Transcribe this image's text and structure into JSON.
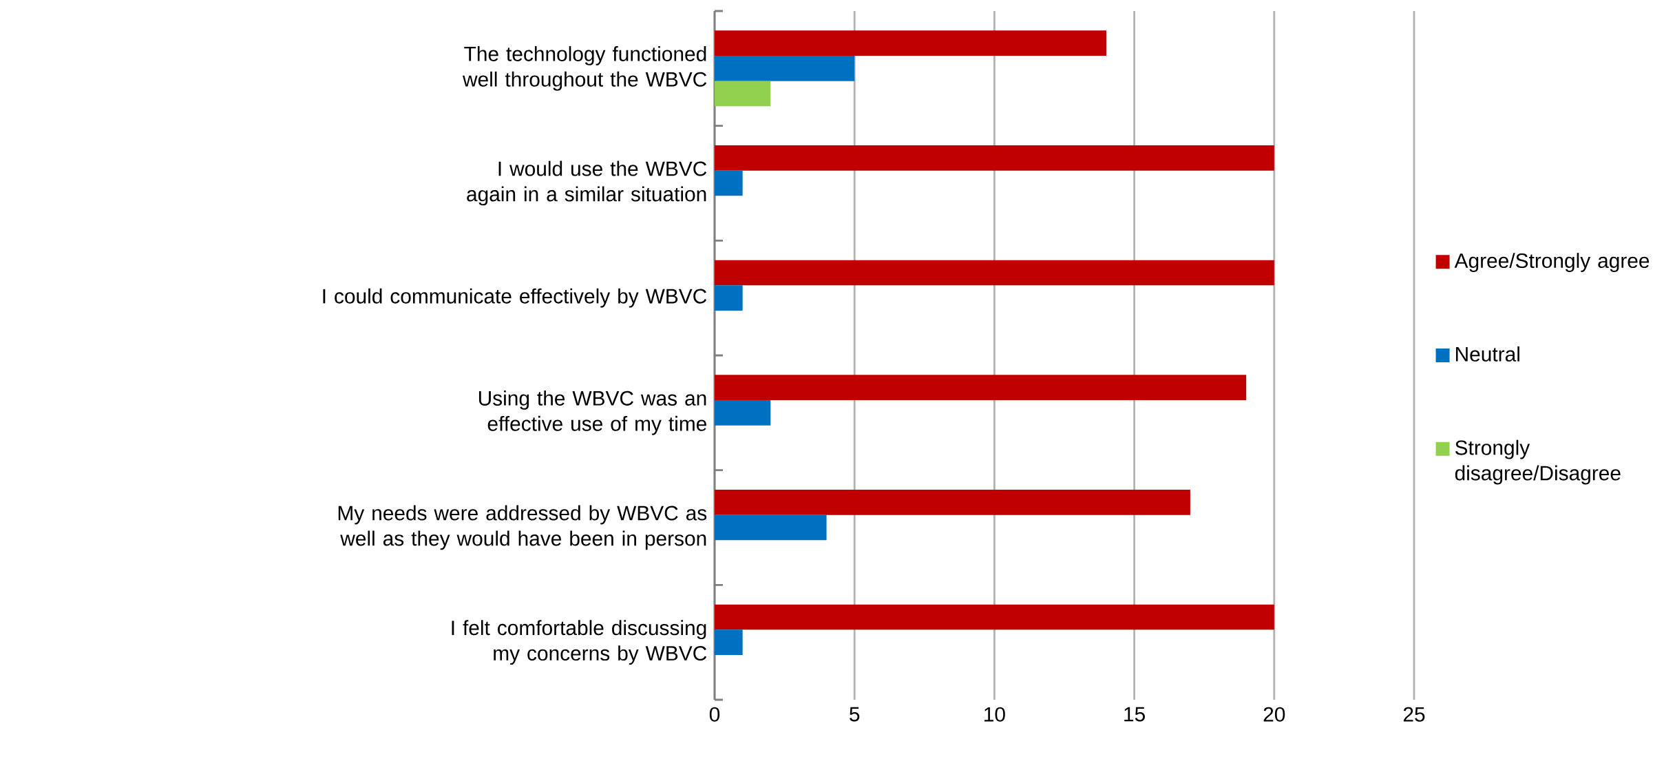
{
  "chart_data": {
    "type": "bar",
    "orientation": "horizontal",
    "categories": [
      "The technology functioned well throughout the WBVC",
      "I would use the WBVC again in a similar situation",
      "I could communicate effectively by WBVC",
      "Using the WBVC was an effective use of my time",
      "My needs were addressed by WBVC as well as they would have been in person",
      "I felt comfortable discussing my concerns by WBVC"
    ],
    "series": [
      {
        "name": "Agree/Strongly agree",
        "color": "#c00000",
        "values": [
          14,
          20,
          20,
          19,
          17,
          20
        ]
      },
      {
        "name": "Neutral",
        "color": "#0070c0",
        "values": [
          5,
          1,
          1,
          2,
          4,
          1
        ]
      },
      {
        "name": "Strongly disagree/Disagree",
        "color": "#92d050",
        "values": [
          2,
          0,
          0,
          0,
          0,
          0
        ]
      }
    ],
    "xlim": [
      0,
      25
    ],
    "xticks": [
      0,
      5,
      10,
      15,
      20,
      25
    ],
    "grid": "x",
    "legend": "right"
  }
}
